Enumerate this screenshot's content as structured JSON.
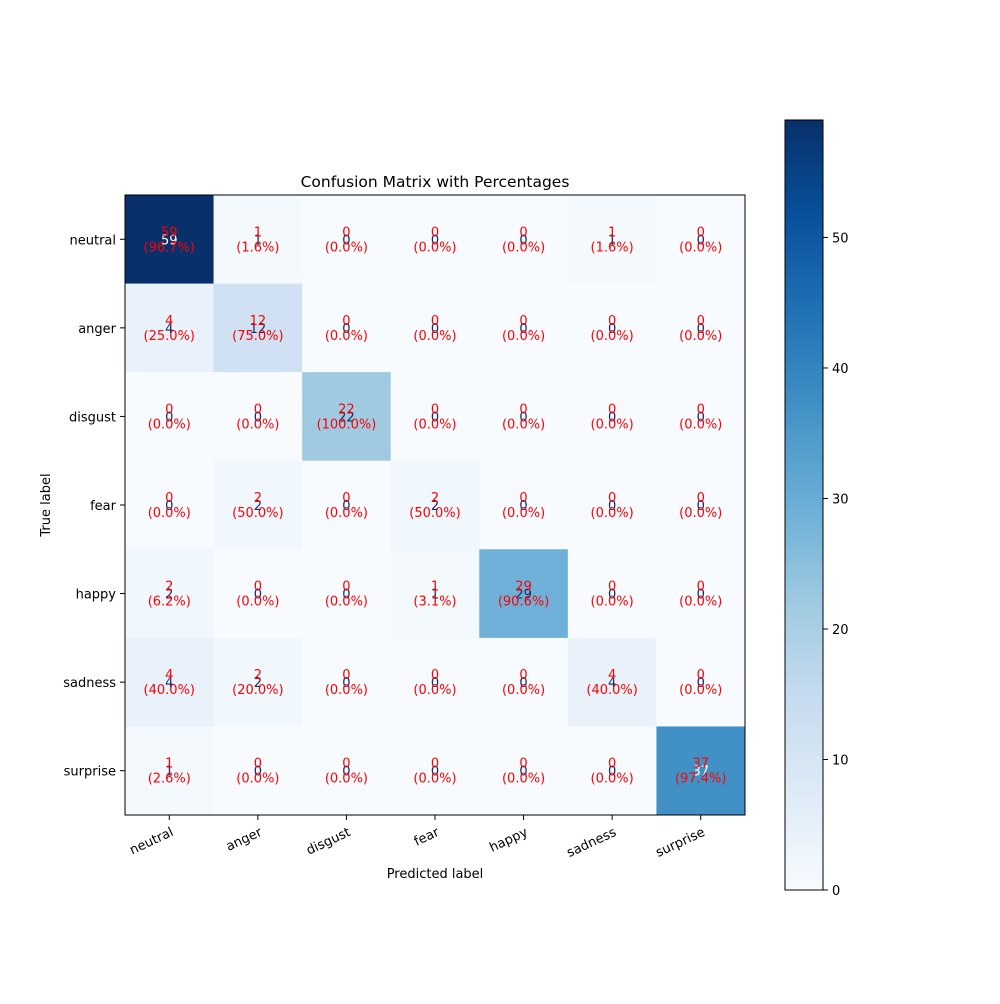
{
  "chart_data": {
    "type": "heatmap",
    "title": "Confusion Matrix with Percentages",
    "xlabel": "Predicted label",
    "ylabel": "True label",
    "x_categories": [
      "neutral",
      "anger",
      "disgust",
      "fear",
      "happy",
      "sadness",
      "surprise"
    ],
    "y_categories": [
      "neutral",
      "anger",
      "disgust",
      "fear",
      "happy",
      "sadness",
      "surprise"
    ],
    "values": [
      [
        59,
        1,
        0,
        0,
        0,
        1,
        0
      ],
      [
        4,
        12,
        0,
        0,
        0,
        0,
        0
      ],
      [
        0,
        0,
        22,
        0,
        0,
        0,
        0
      ],
      [
        0,
        2,
        0,
        2,
        0,
        0,
        0
      ],
      [
        2,
        0,
        0,
        1,
        29,
        0,
        0
      ],
      [
        4,
        2,
        0,
        0,
        0,
        4,
        0
      ],
      [
        1,
        0,
        0,
        0,
        0,
        0,
        37
      ]
    ],
    "percentages": [
      [
        "(96.7%)",
        "(1.6%)",
        "(0.0%)",
        "(0.0%)",
        "(0.0%)",
        "(1.6%)",
        "(0.0%)"
      ],
      [
        "(25.0%)",
        "(75.0%)",
        "(0.0%)",
        "(0.0%)",
        "(0.0%)",
        "(0.0%)",
        "(0.0%)"
      ],
      [
        "(0.0%)",
        "(0.0%)",
        "(100.0%)",
        "(0.0%)",
        "(0.0%)",
        "(0.0%)",
        "(0.0%)"
      ],
      [
        "(0.0%)",
        "(50.0%)",
        "(0.0%)",
        "(50.0%)",
        "(0.0%)",
        "(0.0%)",
        "(0.0%)"
      ],
      [
        "(6.2%)",
        "(0.0%)",
        "(0.0%)",
        "(3.1%)",
        "(90.6%)",
        "(0.0%)",
        "(0.0%)"
      ],
      [
        "(40.0%)",
        "(20.0%)",
        "(0.0%)",
        "(0.0%)",
        "(0.0%)",
        "(40.0%)",
        "(0.0%)"
      ],
      [
        "(2.6%)",
        "(0.0%)",
        "(0.0%)",
        "(0.0%)",
        "(0.0%)",
        "(0.0%)",
        "(97.4%)"
      ]
    ],
    "colormap": "Blues",
    "colorbar": {
      "min": 0,
      "max": 59,
      "ticks": [
        0,
        10,
        20,
        30,
        40,
        50
      ]
    },
    "annotation_color": "#ff0000",
    "grid": false
  }
}
